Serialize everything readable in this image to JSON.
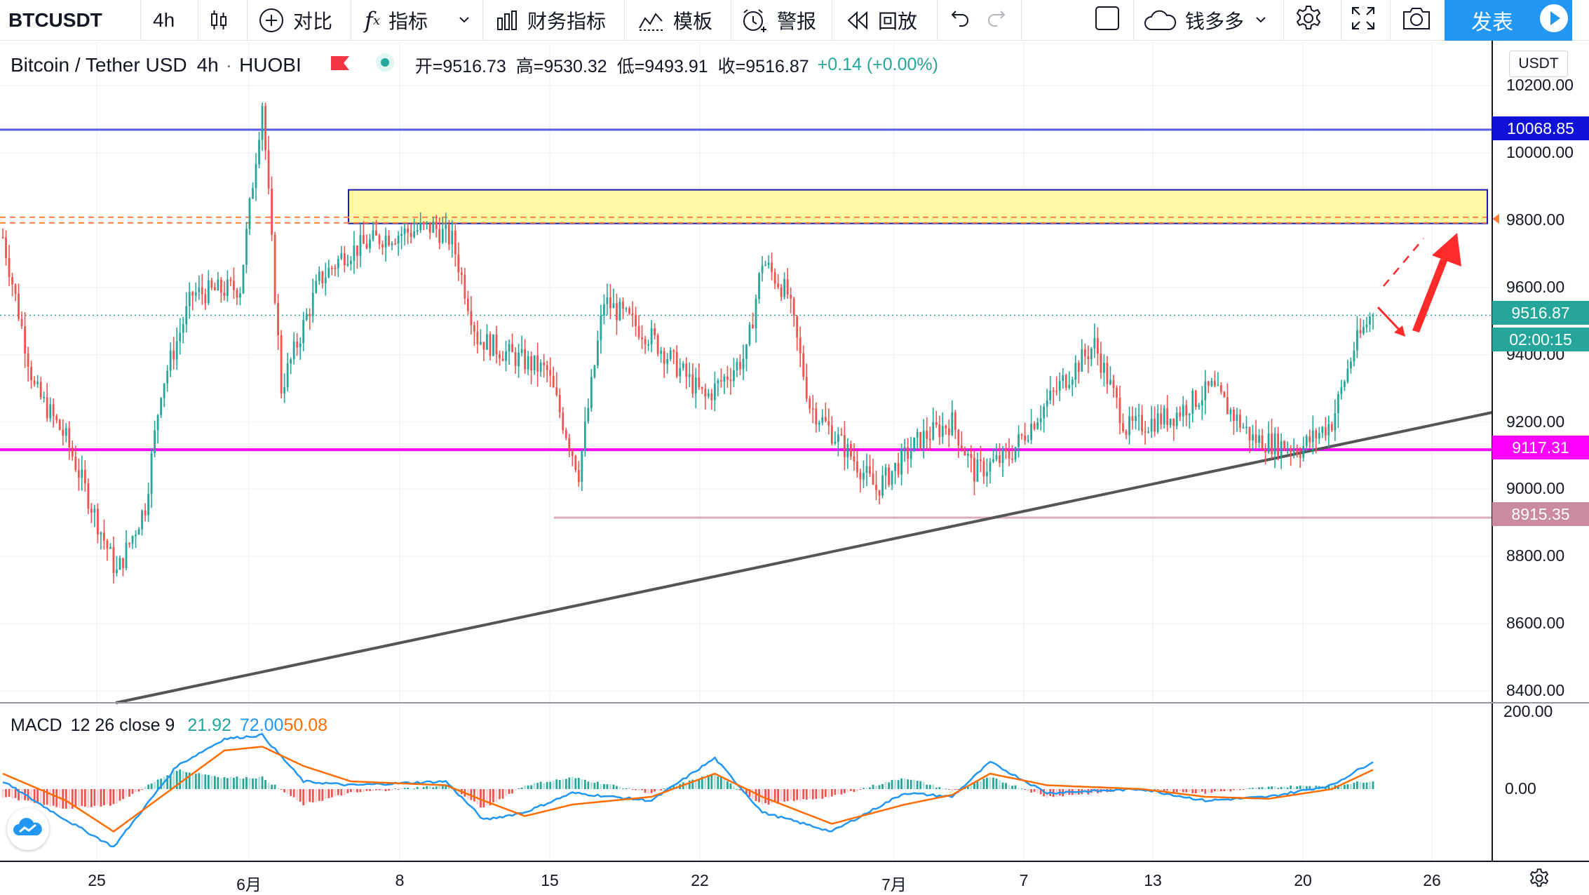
{
  "toolbar": {
    "symbol": "BTCUSDT",
    "interval": "4h",
    "compare_label": "对比",
    "indicators_label": "指标",
    "financials_label": "财务指标",
    "templates_label": "模板",
    "alert_label": "警报",
    "replay_label": "回放",
    "layout_label": "钱多多",
    "publish_label": "发表"
  },
  "legend": {
    "pair": "Bitcoin / Tether USD",
    "interval": "4h",
    "exchange": "HUOBI",
    "sep": "·",
    "open": "开=9516.73",
    "high": "高=9530.32",
    "low": "低=9493.91",
    "close": "收=9516.87",
    "change": "+0.14 (+0.00%)"
  },
  "currency": "USDT",
  "colors": {
    "up": "#26a69a",
    "down": "#ef5350",
    "resistance_line": "#5b5bff",
    "support_line": "#ff00ff",
    "low_line": "#d8aebd",
    "zone_fill": "#fff9a6",
    "zone_border": "#1a1aa8",
    "trendline": "#555555",
    "arrow": "#ff2a2a",
    "macd_line": "#2196f3",
    "signal_line": "#ff6d00"
  },
  "price_labels": {
    "resistance": "10068.85",
    "last": "9516.87",
    "countdown": "02:00:15",
    "support": "9117.31",
    "low": "8915.35"
  },
  "price_axis": [
    "10200.00",
    "10000.00",
    "9800.00",
    "9600.00",
    "9400.00",
    "9200.00",
    "9000.00",
    "8800.00",
    "8600.00",
    "8400.00"
  ],
  "time_axis": [
    "25",
    "6月",
    "8",
    "15",
    "22",
    "7月",
    "7",
    "13",
    "20",
    "26"
  ],
  "macd": {
    "title": "MACD",
    "params": "12 26 close 9",
    "hist_value": "21.92",
    "macd_value": "72.00",
    "signal_value": "50.08",
    "axis": [
      "200.00",
      "0.00"
    ]
  },
  "chart_data": {
    "type": "candlestick",
    "title": "Bitcoin / Tether USD · 4h · HUOBI",
    "ylim": [
      8350,
      10300
    ],
    "horizontal_levels": [
      10068.85,
      9117.31,
      8915.35,
      9800
    ],
    "zone": [
      9790,
      9890
    ],
    "last_price": 9516.87,
    "ohlc_last": {
      "open": 9516.73,
      "high": 9530.32,
      "low": 9493.91,
      "close": 9516.87
    },
    "x_ticks": [
      "25",
      "6月",
      "8",
      "15",
      "22",
      "7月",
      "7",
      "13",
      "20",
      "26"
    ],
    "anchors": [
      {
        "candle": 0,
        "price": 9750
      },
      {
        "candle": 10,
        "price": 9300
      },
      {
        "candle": 20,
        "price": 9150
      },
      {
        "candle": 30,
        "price": 8900
      },
      {
        "candle": 36,
        "price": 8750
      },
      {
        "candle": 45,
        "price": 8950
      },
      {
        "candle": 50,
        "price": 9300
      },
      {
        "candle": 60,
        "price": 9580
      },
      {
        "candle": 75,
        "price": 9600
      },
      {
        "candle": 82,
        "price": 10150
      },
      {
        "candle": 88,
        "price": 9300
      },
      {
        "candle": 100,
        "price": 9620
      },
      {
        "candle": 108,
        "price": 9700
      },
      {
        "candle": 120,
        "price": 9750
      },
      {
        "candle": 136,
        "price": 9780
      },
      {
        "candle": 142,
        "price": 9740
      },
      {
        "candle": 150,
        "price": 9450
      },
      {
        "candle": 160,
        "price": 9400
      },
      {
        "candle": 172,
        "price": 9350
      },
      {
        "candle": 182,
        "price": 9050
      },
      {
        "candle": 190,
        "price": 9560
      },
      {
        "candle": 205,
        "price": 9450
      },
      {
        "candle": 222,
        "price": 9270
      },
      {
        "candle": 235,
        "price": 9400
      },
      {
        "candle": 240,
        "price": 9680
      },
      {
        "candle": 248,
        "price": 9580
      },
      {
        "candle": 255,
        "price": 9250
      },
      {
        "candle": 268,
        "price": 9100
      },
      {
        "candle": 276,
        "price": 9000
      },
      {
        "candle": 290,
        "price": 9150
      },
      {
        "candle": 300,
        "price": 9200
      },
      {
        "candle": 307,
        "price": 9050
      },
      {
        "candle": 318,
        "price": 9100
      },
      {
        "candle": 327,
        "price": 9220
      },
      {
        "candle": 335,
        "price": 9320
      },
      {
        "candle": 345,
        "price": 9430
      },
      {
        "candle": 355,
        "price": 9180
      },
      {
        "candle": 370,
        "price": 9220
      },
      {
        "candle": 382,
        "price": 9300
      },
      {
        "candle": 395,
        "price": 9150
      },
      {
        "candle": 410,
        "price": 9120
      },
      {
        "candle": 420,
        "price": 9200
      },
      {
        "candle": 427,
        "price": 9420
      },
      {
        "candle": 433,
        "price": 9530
      }
    ],
    "macd_anchors": [
      {
        "candle": 0,
        "macd": 20,
        "signal": 40
      },
      {
        "candle": 20,
        "macd": -80,
        "signal": -30
      },
      {
        "candle": 35,
        "macd": -150,
        "signal": -110
      },
      {
        "candle": 55,
        "macd": 60,
        "signal": 10
      },
      {
        "candle": 70,
        "macd": 130,
        "signal": 100
      },
      {
        "candle": 82,
        "macd": 140,
        "signal": 110
      },
      {
        "candle": 95,
        "macd": 20,
        "signal": 60
      },
      {
        "candle": 110,
        "macd": 10,
        "signal": 20
      },
      {
        "candle": 140,
        "macd": 20,
        "signal": 10
      },
      {
        "candle": 152,
        "macd": -80,
        "signal": -30
      },
      {
        "candle": 165,
        "macd": -60,
        "signal": -70
      },
      {
        "candle": 180,
        "macd": -10,
        "signal": -40
      },
      {
        "candle": 205,
        "macd": -30,
        "signal": -20
      },
      {
        "candle": 225,
        "macd": 80,
        "signal": 40
      },
      {
        "candle": 240,
        "macd": -60,
        "signal": -20
      },
      {
        "candle": 262,
        "macd": -110,
        "signal": -90
      },
      {
        "candle": 285,
        "macd": -10,
        "signal": -40
      },
      {
        "candle": 300,
        "macd": -20,
        "signal": -15
      },
      {
        "candle": 312,
        "macd": 70,
        "signal": 40
      },
      {
        "candle": 330,
        "macd": -10,
        "signal": 10
      },
      {
        "candle": 360,
        "macd": 0,
        "signal": 0
      },
      {
        "candle": 380,
        "macd": -30,
        "signal": -20
      },
      {
        "candle": 400,
        "macd": -20,
        "signal": -25
      },
      {
        "candle": 420,
        "macd": 10,
        "signal": 0
      },
      {
        "candle": 433,
        "macd": 72,
        "signal": 50
      }
    ]
  }
}
